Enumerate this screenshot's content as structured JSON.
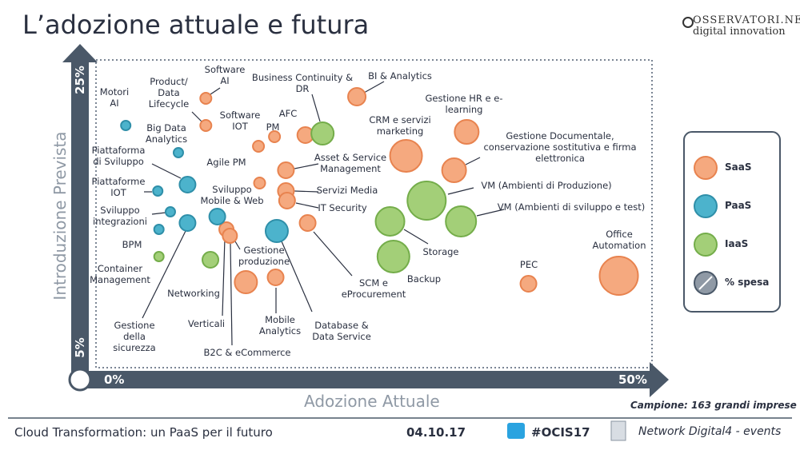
{
  "header": {
    "title": "L’adozione attuale e futura",
    "logo_line1": "OSSERVATORI.NET",
    "logo_line2": "digital innovation"
  },
  "chart_data": {
    "type": "bubble",
    "x_label": "Adozione Attuale",
    "y_label": "Introduzione Prevista",
    "xlim": [
      0,
      50
    ],
    "ylim": [
      5,
      25
    ],
    "xticks": [
      {
        "value": 0,
        "label": "0%"
      },
      {
        "value": 50,
        "label": "50%"
      }
    ],
    "yticks": [
      {
        "value": 5,
        "label": "5%"
      },
      {
        "value": 25,
        "label": "25%"
      }
    ],
    "size_legend": "% spesa",
    "note": "Campione: 163 grandi imprese",
    "series": [
      {
        "name": "SaaS",
        "color": "#f5a97f",
        "stroke": "#e8834f",
        "labels": [
          "Software\nAI",
          "Product/\nData\nLifecycle",
          "Software\nIOT",
          "PM",
          "AFC",
          "BI & Analytics",
          "Agile PM",
          "Asset & Service\nManagement",
          "Servizi Media",
          "IT Security",
          "Verticali",
          "B2C & eCommerce",
          "Gestione\nproduzione",
          "Mobile\nAnalytics",
          "SCM e\neProcurement",
          "CRM e servizi\nmarketing",
          "Gestione HR e e-\nlearning",
          "Gestione Documentale,\nconservazione sostitutiva e firma\nelettronica",
          "PEC",
          "Office\nAutomation"
        ],
        "x": [
          11.0,
          11.0,
          15.6,
          17.0,
          19.7,
          24.2,
          15.7,
          18.0,
          18.0,
          18.1,
          12.8,
          13.1,
          14.5,
          17.1,
          19.9,
          28.5,
          33.8,
          32.7,
          39.2,
          47.1
        ],
        "values": [
          22.6,
          20.9,
          19.6,
          20.2,
          20.3,
          22.7,
          17.3,
          18.1,
          16.8,
          16.2,
          14.4,
          14.0,
          11.1,
          11.4,
          14.8,
          19.0,
          20.5,
          18.1,
          11.0,
          11.5
        ],
        "sizes": [
          7,
          7,
          7,
          7,
          10,
          11,
          7,
          10,
          10,
          10,
          9,
          9,
          14,
          10,
          10,
          20,
          15,
          15,
          10,
          24
        ]
      },
      {
        "name": "PaaS",
        "color": "#4cb3cc",
        "stroke": "#2f8fa9",
        "labels": [
          "Motori\nAI",
          "Big Data\nAnalytics",
          "Piattaforma\ndi Sviluppo",
          "Piattaforme\nIOT",
          "Sviluppo\nintegrazioni",
          "BPM",
          "Gestione\ndella\nsicurezza",
          "Sviluppo\nMobile & Web",
          "Database &\nData Service"
        ],
        "x": [
          4.0,
          8.6,
          9.4,
          6.8,
          7.9,
          6.9,
          9.4,
          12.0,
          17.2
        ],
        "values": [
          20.9,
          19.2,
          17.2,
          16.8,
          15.5,
          14.4,
          14.8,
          15.2,
          14.3
        ],
        "sizes": [
          6,
          6,
          10,
          6,
          6,
          6,
          10,
          10,
          14
        ]
      },
      {
        "name": "IaaS",
        "color": "#a3cf78",
        "stroke": "#74ad4a",
        "labels": [
          "Business Continuity &\nDR",
          "VM (Ambienti di Produzione)",
          "VM (Ambienti di sviluppo e test)",
          "Storage",
          "Backup",
          "Networking",
          "Container\nManagement"
        ],
        "x": [
          21.2,
          30.3,
          33.3,
          27.1,
          27.4,
          11.4,
          6.9
        ],
        "values": [
          20.4,
          16.2,
          14.9,
          14.9,
          12.7,
          12.5,
          12.7
        ],
        "sizes": [
          14,
          24,
          19,
          18,
          20,
          10,
          6
        ]
      }
    ]
  },
  "footer": {
    "left": "Cloud Transformation: un PaaS per il futuro",
    "date": "04.10.17",
    "hashtag": "#OCIS17",
    "right": "Network Digital4 - events"
  }
}
